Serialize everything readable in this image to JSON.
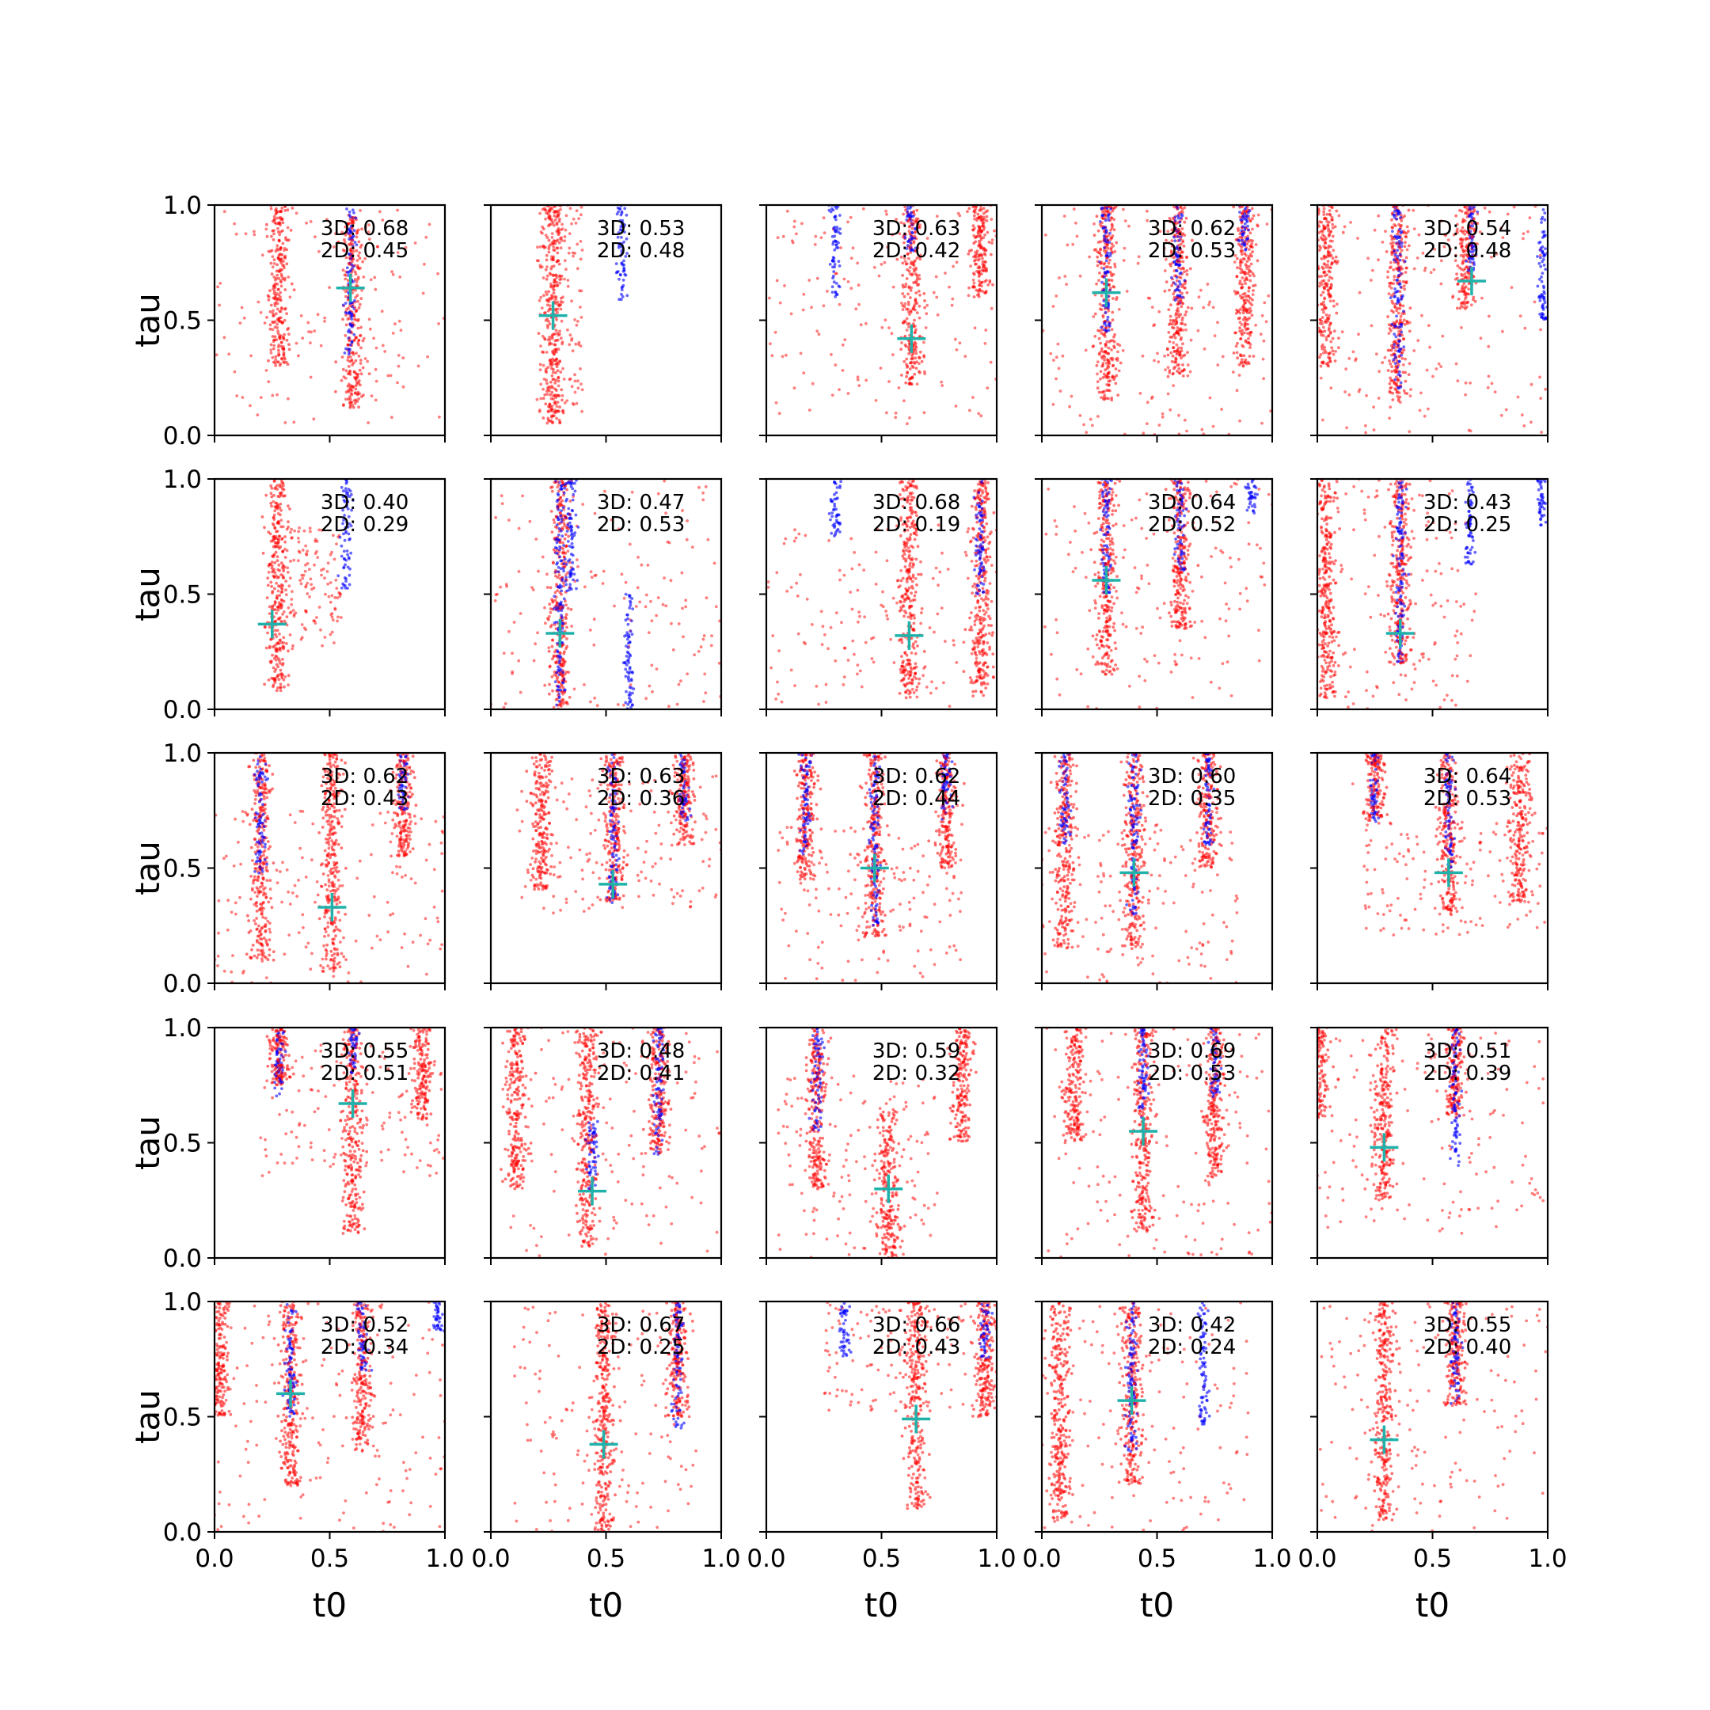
{
  "figure": {
    "xlabel": "t0",
    "ylabel": "tau",
    "xticks": [
      "0.0",
      "0.5",
      "1.0"
    ],
    "yticks": [
      "0.0",
      "0.5",
      "1.0"
    ]
  },
  "chart_data": {
    "type": "scatter",
    "grid": false,
    "xlim": [
      0,
      1
    ],
    "ylim": [
      0,
      1
    ],
    "colors": {
      "red_points": "#ff0000",
      "blue_points": "#0000ff",
      "marker": "#20b2aa"
    },
    "panels": [
      {
        "score_3d": "3D: 0.68",
        "score_2d": "2D: 0.45",
        "marker": [
          0.59,
          0.64
        ],
        "red_bands": [
          [
            0.28,
            0.3,
            1.0
          ],
          [
            0.6,
            0.12,
            0.95
          ]
        ],
        "blue_bands": [
          [
            0.59,
            0.35,
            1.0
          ]
        ],
        "spread": [
          0.0,
          1.0,
          0.05,
          0.98
        ]
      },
      {
        "score_3d": "3D: 0.53",
        "score_2d": "2D: 0.48",
        "marker": [
          0.27,
          0.52
        ],
        "red_bands": [
          [
            0.27,
            0.05,
            1.0
          ]
        ],
        "blue_bands": [
          [
            0.57,
            0.57,
            1.0
          ]
        ],
        "spread": [
          0.2,
          0.4,
          0.1,
          1.0
        ]
      },
      {
        "score_3d": "3D: 0.63",
        "score_2d": "2D: 0.42",
        "marker": [
          0.63,
          0.42
        ],
        "red_bands": [
          [
            0.63,
            0.22,
            1.0
          ],
          [
            0.93,
            0.6,
            1.0
          ]
        ],
        "blue_bands": [
          [
            0.3,
            0.6,
            1.0
          ],
          [
            0.63,
            0.8,
            1.0
          ]
        ],
        "spread": [
          0.0,
          1.0,
          0.05,
          1.0
        ]
      },
      {
        "score_3d": "3D: 0.62",
        "score_2d": "2D: 0.53",
        "marker": [
          0.28,
          0.62
        ],
        "red_bands": [
          [
            0.28,
            0.15,
            1.0
          ],
          [
            0.59,
            0.25,
            1.0
          ],
          [
            0.88,
            0.3,
            1.0
          ]
        ],
        "blue_bands": [
          [
            0.28,
            0.45,
            1.0
          ],
          [
            0.59,
            0.55,
            1.0
          ],
          [
            0.88,
            0.8,
            1.0
          ]
        ],
        "spread": [
          0.0,
          1.0,
          0.0,
          1.0
        ]
      },
      {
        "score_3d": "3D: 0.54",
        "score_2d": "2D: 0.48",
        "marker": [
          0.67,
          0.67
        ],
        "red_bands": [
          [
            0.04,
            0.3,
            1.0
          ],
          [
            0.35,
            0.15,
            1.0
          ],
          [
            0.65,
            0.55,
            1.0
          ]
        ],
        "blue_bands": [
          [
            0.35,
            0.2,
            1.0
          ],
          [
            0.67,
            0.7,
            1.0
          ],
          [
            0.98,
            0.5,
            1.0
          ]
        ],
        "spread": [
          0.0,
          1.0,
          0.0,
          1.0
        ]
      },
      {
        "score_3d": "3D: 0.40",
        "score_2d": "2D: 0.29",
        "marker": [
          0.25,
          0.37
        ],
        "red_bands": [
          [
            0.27,
            0.08,
            1.0
          ]
        ],
        "blue_bands": [
          [
            0.57,
            0.52,
            1.0
          ]
        ],
        "spread": [
          0.25,
          0.55,
          0.25,
          0.8
        ]
      },
      {
        "score_3d": "3D: 0.47",
        "score_2d": "2D: 0.53",
        "marker": [
          0.3,
          0.33
        ],
        "red_bands": [
          [
            0.3,
            0.0,
            1.0
          ]
        ],
        "blue_bands": [
          [
            0.3,
            0.0,
            1.0
          ],
          [
            0.35,
            0.5,
            1.0
          ],
          [
            0.6,
            0.0,
            0.5
          ]
        ],
        "spread": [
          0.0,
          1.0,
          0.0,
          1.0
        ]
      },
      {
        "score_3d": "3D: 0.68",
        "score_2d": "2D: 0.19",
        "marker": [
          0.62,
          0.32
        ],
        "red_bands": [
          [
            0.62,
            0.05,
            1.0
          ],
          [
            0.93,
            0.05,
            1.0
          ]
        ],
        "blue_bands": [
          [
            0.3,
            0.75,
            1.0
          ],
          [
            0.93,
            0.5,
            1.0
          ]
        ],
        "spread": [
          0.0,
          1.0,
          0.0,
          0.8
        ]
      },
      {
        "score_3d": "3D: 0.64",
        "score_2d": "2D: 0.52",
        "marker": [
          0.28,
          0.56
        ],
        "red_bands": [
          [
            0.28,
            0.15,
            1.0
          ],
          [
            0.6,
            0.35,
            1.0
          ]
        ],
        "blue_bands": [
          [
            0.28,
            0.5,
            1.0
          ],
          [
            0.6,
            0.6,
            1.0
          ],
          [
            0.91,
            0.85,
            1.0
          ]
        ],
        "spread": [
          0.0,
          1.0,
          0.0,
          1.0
        ]
      },
      {
        "score_3d": "3D: 0.43",
        "score_2d": "2D: 0.25",
        "marker": [
          0.36,
          0.33
        ],
        "red_bands": [
          [
            0.04,
            0.05,
            1.0
          ],
          [
            0.36,
            0.2,
            1.0
          ]
        ],
        "blue_bands": [
          [
            0.36,
            0.2,
            1.0
          ],
          [
            0.66,
            0.62,
            1.0
          ],
          [
            0.97,
            0.8,
            1.0
          ]
        ],
        "spread": [
          0.0,
          0.7,
          0.0,
          1.0
        ]
      },
      {
        "score_3d": "3D: 0.62",
        "score_2d": "2D: 0.43",
        "marker": [
          0.51,
          0.33
        ],
        "red_bands": [
          [
            0.2,
            0.1,
            1.0
          ],
          [
            0.51,
            0.05,
            1.0
          ],
          [
            0.82,
            0.55,
            1.0
          ]
        ],
        "blue_bands": [
          [
            0.2,
            0.45,
            1.0
          ],
          [
            0.82,
            0.75,
            1.0
          ]
        ],
        "spread": [
          0.0,
          1.0,
          0.0,
          0.75
        ]
      },
      {
        "score_3d": "3D: 0.63",
        "score_2d": "2D: 0.36",
        "marker": [
          0.53,
          0.43
        ],
        "red_bands": [
          [
            0.22,
            0.4,
            1.0
          ],
          [
            0.53,
            0.35,
            1.0
          ],
          [
            0.84,
            0.6,
            1.0
          ]
        ],
        "blue_bands": [
          [
            0.53,
            0.35,
            1.0
          ],
          [
            0.84,
            0.7,
            1.0
          ]
        ],
        "spread": [
          0.1,
          1.0,
          0.3,
          0.9
        ]
      },
      {
        "score_3d": "3D: 0.62",
        "score_2d": "2D: 0.44",
        "marker": [
          0.47,
          0.5
        ],
        "red_bands": [
          [
            0.17,
            0.45,
            1.0
          ],
          [
            0.47,
            0.2,
            1.0
          ],
          [
            0.78,
            0.5,
            1.0
          ]
        ],
        "blue_bands": [
          [
            0.17,
            0.55,
            1.0
          ],
          [
            0.47,
            0.25,
            1.0
          ],
          [
            0.78,
            0.7,
            1.0
          ]
        ],
        "spread": [
          0.05,
          0.85,
          0.0,
          0.7
        ]
      },
      {
        "score_3d": "3D: 0.60",
        "score_2d": "2D: 0.35",
        "marker": [
          0.4,
          0.48
        ],
        "red_bands": [
          [
            0.1,
            0.15,
            1.0
          ],
          [
            0.4,
            0.15,
            1.0
          ],
          [
            0.72,
            0.5,
            1.0
          ]
        ],
        "blue_bands": [
          [
            0.1,
            0.6,
            1.0
          ],
          [
            0.4,
            0.3,
            1.0
          ],
          [
            0.72,
            0.6,
            1.0
          ]
        ],
        "spread": [
          0.0,
          0.85,
          0.0,
          0.7
        ]
      },
      {
        "score_3d": "3D: 0.64",
        "score_2d": "2D: 0.53",
        "marker": [
          0.57,
          0.48
        ],
        "red_bands": [
          [
            0.25,
            0.7,
            1.0
          ],
          [
            0.57,
            0.3,
            1.0
          ],
          [
            0.88,
            0.35,
            1.0
          ]
        ],
        "blue_bands": [
          [
            0.25,
            0.7,
            1.0
          ],
          [
            0.57,
            0.5,
            1.0
          ]
        ],
        "spread": [
          0.2,
          1.0,
          0.2,
          0.7
        ]
      },
      {
        "score_3d": "3D: 0.55",
        "score_2d": "2D: 0.51",
        "marker": [
          0.6,
          0.67
        ],
        "red_bands": [
          [
            0.28,
            0.75,
            1.0
          ],
          [
            0.6,
            0.1,
            1.0
          ],
          [
            0.9,
            0.6,
            1.0
          ]
        ],
        "blue_bands": [
          [
            0.28,
            0.7,
            1.0
          ],
          [
            0.6,
            0.8,
            1.0
          ]
        ],
        "spread": [
          0.2,
          1.0,
          0.35,
          0.95
        ]
      },
      {
        "score_3d": "3D: 0.48",
        "score_2d": "2D: 0.41",
        "marker": [
          0.44,
          0.29
        ],
        "red_bands": [
          [
            0.11,
            0.3,
            1.0
          ],
          [
            0.42,
            0.05,
            1.0
          ],
          [
            0.73,
            0.45,
            1.0
          ]
        ],
        "blue_bands": [
          [
            0.44,
            0.3,
            0.6
          ],
          [
            0.73,
            0.45,
            1.0
          ]
        ],
        "spread": [
          0.05,
          1.0,
          0.0,
          1.0
        ]
      },
      {
        "score_3d": "3D: 0.59",
        "score_2d": "2D: 0.32",
        "marker": [
          0.53,
          0.3
        ],
        "red_bands": [
          [
            0.22,
            0.3,
            1.0
          ],
          [
            0.53,
            0.0,
            0.65
          ],
          [
            0.85,
            0.5,
            1.0
          ]
        ],
        "blue_bands": [
          [
            0.22,
            0.55,
            1.0
          ]
        ],
        "spread": [
          0.05,
          0.75,
          0.0,
          0.8
        ]
      },
      {
        "score_3d": "3D: 0.69",
        "score_2d": "2D: 0.53",
        "marker": [
          0.44,
          0.55
        ],
        "red_bands": [
          [
            0.14,
            0.5,
            1.0
          ],
          [
            0.44,
            0.1,
            1.0
          ],
          [
            0.75,
            0.35,
            1.0
          ]
        ],
        "blue_bands": [
          [
            0.44,
            0.6,
            1.0
          ],
          [
            0.75,
            0.7,
            1.0
          ]
        ],
        "spread": [
          0.0,
          1.0,
          0.0,
          1.0
        ]
      },
      {
        "score_3d": "3D: 0.51",
        "score_2d": "2D: 0.39",
        "marker": [
          0.29,
          0.48
        ],
        "red_bands": [
          [
            0.0,
            0.6,
            1.0
          ],
          [
            0.29,
            0.25,
            1.0
          ],
          [
            0.6,
            0.6,
            1.0
          ]
        ],
        "blue_bands": [
          [
            0.6,
            0.4,
            1.0
          ]
        ],
        "spread": [
          0.0,
          1.0,
          0.1,
          1.0
        ]
      },
      {
        "score_3d": "3D: 0.52",
        "score_2d": "2D: 0.34",
        "marker": [
          0.33,
          0.6
        ],
        "red_bands": [
          [
            0.02,
            0.5,
            1.0
          ],
          [
            0.33,
            0.2,
            1.0
          ],
          [
            0.64,
            0.35,
            1.0
          ]
        ],
        "blue_bands": [
          [
            0.33,
            0.5,
            1.0
          ],
          [
            0.64,
            0.7,
            1.0
          ],
          [
            0.97,
            0.85,
            1.0
          ]
        ],
        "spread": [
          0.0,
          1.0,
          0.0,
          1.0
        ]
      },
      {
        "score_3d": "3D: 0.67",
        "score_2d": "2D: 0.25",
        "marker": [
          0.49,
          0.38
        ],
        "red_bands": [
          [
            0.49,
            0.0,
            1.0
          ],
          [
            0.81,
            0.5,
            1.0
          ]
        ],
        "blue_bands": [
          [
            0.81,
            0.45,
            1.0
          ]
        ],
        "spread": [
          0.1,
          0.9,
          0.0,
          1.0
        ]
      },
      {
        "score_3d": "3D: 0.66",
        "score_2d": "2D: 0.43",
        "marker": [
          0.65,
          0.49
        ],
        "red_bands": [
          [
            0.65,
            0.1,
            1.0
          ],
          [
            0.95,
            0.5,
            1.0
          ]
        ],
        "blue_bands": [
          [
            0.34,
            0.75,
            1.0
          ],
          [
            0.95,
            0.75,
            1.0
          ]
        ],
        "spread": [
          0.25,
          1.0,
          0.5,
          1.0
        ]
      },
      {
        "score_3d": "3D: 0.42",
        "score_2d": "2D: 0.24",
        "marker": [
          0.39,
          0.57
        ],
        "red_bands": [
          [
            0.08,
            0.05,
            1.0
          ],
          [
            0.39,
            0.2,
            1.0
          ]
        ],
        "blue_bands": [
          [
            0.39,
            0.35,
            1.0
          ],
          [
            0.7,
            0.45,
            1.0
          ]
        ],
        "spread": [
          0.0,
          0.9,
          0.0,
          1.0
        ]
      },
      {
        "score_3d": "3D: 0.55",
        "score_2d": "2D: 0.40",
        "marker": [
          0.29,
          0.4
        ],
        "red_bands": [
          [
            0.29,
            0.05,
            1.0
          ],
          [
            0.6,
            0.55,
            1.0
          ]
        ],
        "blue_bands": [
          [
            0.6,
            0.55,
            1.0
          ]
        ],
        "spread": [
          0.0,
          1.0,
          0.0,
          1.0
        ]
      }
    ]
  }
}
